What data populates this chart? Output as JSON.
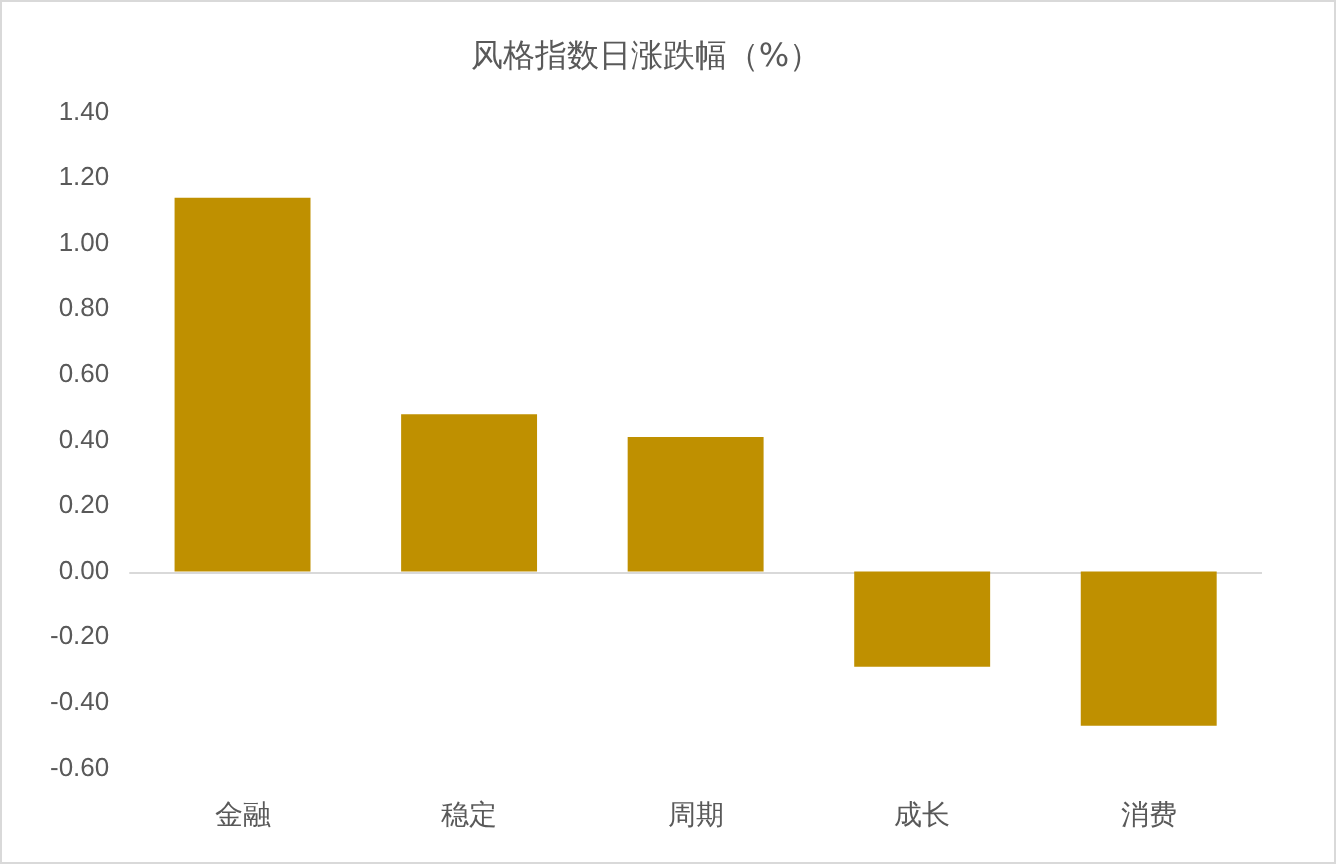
{
  "chart_data": {
    "type": "bar",
    "title": "风格指数日涨跌幅（%）",
    "categories": [
      "金融",
      "稳定",
      "周期",
      "成长",
      "消费"
    ],
    "values": [
      1.14,
      0.48,
      0.41,
      -0.29,
      -0.47
    ],
    "color": "#bf9000",
    "ylim": [
      -0.6,
      1.4
    ],
    "yticks": [
      {
        "value": -0.6,
        "label": "-0.60"
      },
      {
        "value": -0.4,
        "label": "-0.40"
      },
      {
        "value": -0.2,
        "label": "-0.20"
      },
      {
        "value": 0,
        "label": "0.00"
      },
      {
        "value": 0.2,
        "label": "0.20"
      },
      {
        "value": 0.4,
        "label": "0.40"
      },
      {
        "value": 0.6,
        "label": "0.60"
      },
      {
        "value": 0.8,
        "label": "0.80"
      },
      {
        "value": 1.0,
        "label": "1.00"
      },
      {
        "value": 1.2,
        "label": "1.20"
      },
      {
        "value": 1.4,
        "label": "1.40"
      }
    ],
    "ref_lines": [
      {
        "axis": "y",
        "value": 0,
        "color": "#d9d9d9"
      }
    ],
    "grid": false,
    "legend": false
  }
}
